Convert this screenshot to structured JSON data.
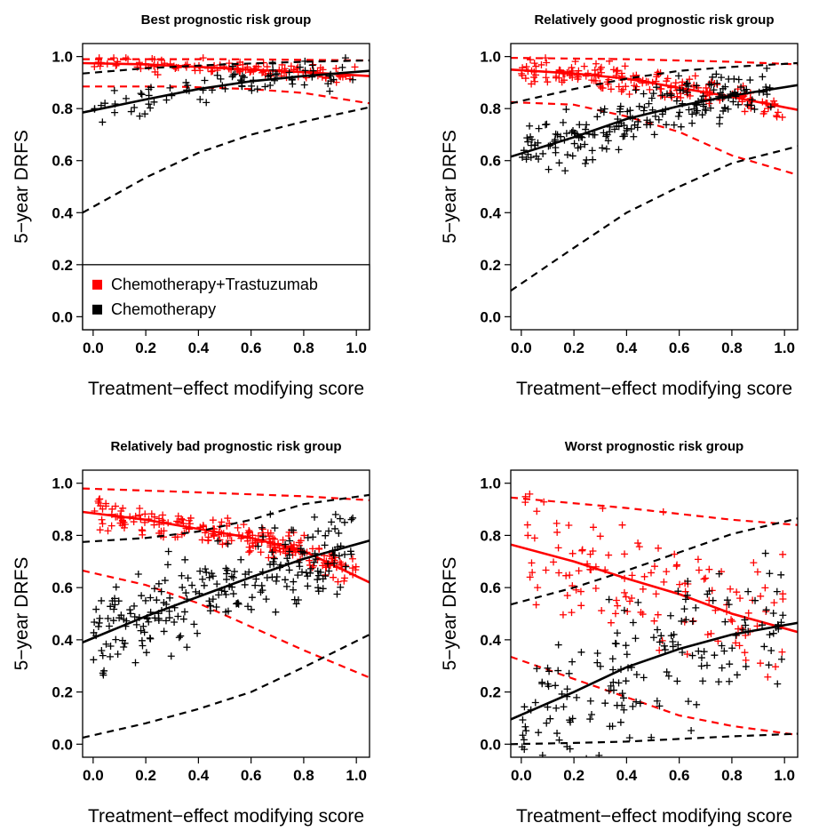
{
  "colors": {
    "trastuzumab": "#ff0000",
    "chemotherapy": "#000000"
  },
  "chart_data": [
    {
      "type": "scatter",
      "title": "Best prognostic risk group",
      "xlabel": "Treatment−effect modifying score",
      "ylabel": "5−year DRFS",
      "xlim": [
        -0.04,
        1.05
      ],
      "ylim": [
        -0.05,
        1.05
      ],
      "xticks": [
        "0.0",
        "0.2",
        "0.4",
        "0.6",
        "0.8",
        "1.0"
      ],
      "yticks": [
        "0.0",
        "0.2",
        "0.4",
        "0.6",
        "0.8",
        "1.0"
      ],
      "legend": {
        "placement": "bottom-left",
        "entries": [
          "Chemotherapy+Trastuzumab",
          "Chemotherapy"
        ]
      },
      "series": [
        {
          "name": "Chemotherapy+Trastuzumab",
          "color": "#ff0000",
          "fit": [
            [
              -0.04,
              0.975
            ],
            [
              0.2,
              0.97
            ],
            [
              0.4,
              0.96
            ],
            [
              0.6,
              0.95
            ],
            [
              0.8,
              0.94
            ],
            [
              1.05,
              0.925
            ]
          ],
          "ci_upper": [
            [
              -0.04,
              0.99
            ],
            [
              0.5,
              0.99
            ],
            [
              1.05,
              0.985
            ]
          ],
          "ci_lower": [
            [
              -0.04,
              0.885
            ],
            [
              0.3,
              0.885
            ],
            [
              0.6,
              0.875
            ],
            [
              0.8,
              0.86
            ],
            [
              1.05,
              0.82
            ]
          ],
          "points": {
            "n": 110,
            "xmin": 0.0,
            "xmax": 1.0,
            "spread": 0.014
          }
        },
        {
          "name": "Chemotherapy",
          "color": "#000000",
          "fit": [
            [
              -0.04,
              0.785
            ],
            [
              0.2,
              0.835
            ],
            [
              0.4,
              0.875
            ],
            [
              0.6,
              0.905
            ],
            [
              0.8,
              0.925
            ],
            [
              1.05,
              0.945
            ]
          ],
          "ci_upper": [
            [
              -0.04,
              0.935
            ],
            [
              0.2,
              0.955
            ],
            [
              0.5,
              0.97
            ],
            [
              0.8,
              0.98
            ],
            [
              1.05,
              0.985
            ]
          ],
          "ci_lower": [
            [
              -0.04,
              0.4
            ],
            [
              0.2,
              0.535
            ],
            [
              0.4,
              0.63
            ],
            [
              0.6,
              0.7
            ],
            [
              0.8,
              0.75
            ],
            [
              1.05,
              0.805
            ]
          ],
          "points": {
            "n": 80,
            "xmin": 0.0,
            "xmax": 1.0,
            "spread": 0.03
          }
        }
      ]
    },
    {
      "type": "scatter",
      "title": "Relatively good prognostic risk group",
      "xlabel": "Treatment−effect modifying score",
      "ylabel": "5−year DRFS",
      "xlim": [
        -0.04,
        1.05
      ],
      "ylim": [
        -0.05,
        1.05
      ],
      "xticks": [
        "0.0",
        "0.2",
        "0.4",
        "0.6",
        "0.8",
        "1.0"
      ],
      "yticks": [
        "0.0",
        "0.2",
        "0.4",
        "0.6",
        "0.8",
        "1.0"
      ],
      "series": [
        {
          "name": "Chemotherapy+Trastuzumab",
          "color": "#ff0000",
          "fit": [
            [
              -0.04,
              0.95
            ],
            [
              0.2,
              0.935
            ],
            [
              0.4,
              0.915
            ],
            [
              0.6,
              0.88
            ],
            [
              0.8,
              0.845
            ],
            [
              1.05,
              0.795
            ]
          ],
          "ci_upper": [
            [
              -0.04,
              0.995
            ],
            [
              0.4,
              0.99
            ],
            [
              0.8,
              0.98
            ],
            [
              1.05,
              0.97
            ]
          ],
          "ci_lower": [
            [
              -0.04,
              0.825
            ],
            [
              0.2,
              0.815
            ],
            [
              0.4,
              0.77
            ],
            [
              0.6,
              0.71
            ],
            [
              0.8,
              0.62
            ],
            [
              1.05,
              0.545
            ]
          ],
          "points": {
            "n": 180,
            "xmin": 0.0,
            "xmax": 1.0,
            "spread": 0.025
          }
        },
        {
          "name": "Chemotherapy",
          "color": "#000000",
          "fit": [
            [
              -0.04,
              0.615
            ],
            [
              0.2,
              0.69
            ],
            [
              0.4,
              0.76
            ],
            [
              0.6,
              0.81
            ],
            [
              0.8,
              0.85
            ],
            [
              1.05,
              0.89
            ]
          ],
          "ci_upper": [
            [
              -0.04,
              0.82
            ],
            [
              0.2,
              0.875
            ],
            [
              0.4,
              0.915
            ],
            [
              0.6,
              0.945
            ],
            [
              0.8,
              0.96
            ],
            [
              1.05,
              0.975
            ]
          ],
          "ci_lower": [
            [
              -0.04,
              0.1
            ],
            [
              0.2,
              0.265
            ],
            [
              0.4,
              0.4
            ],
            [
              0.6,
              0.5
            ],
            [
              0.8,
              0.59
            ],
            [
              1.05,
              0.655
            ]
          ],
          "points": {
            "n": 200,
            "xmin": 0.0,
            "xmax": 0.95,
            "spread": 0.05
          }
        }
      ]
    },
    {
      "type": "scatter",
      "title": "Relatively bad prognostic risk group",
      "xlabel": "Treatment−effect modifying score",
      "ylabel": "5−year DRFS",
      "xlim": [
        -0.04,
        1.05
      ],
      "ylim": [
        -0.05,
        1.05
      ],
      "xticks": [
        "0.0",
        "0.2",
        "0.4",
        "0.6",
        "0.8",
        "1.0"
      ],
      "yticks": [
        "0.0",
        "0.2",
        "0.4",
        "0.6",
        "0.8",
        "1.0"
      ],
      "series": [
        {
          "name": "Chemotherapy+Trastuzumab",
          "color": "#ff0000",
          "fit": [
            [
              -0.04,
              0.89
            ],
            [
              0.2,
              0.86
            ],
            [
              0.4,
              0.825
            ],
            [
              0.6,
              0.79
            ],
            [
              0.8,
              0.74
            ],
            [
              1.05,
              0.62
            ]
          ],
          "ci_upper": [
            [
              -0.04,
              0.98
            ],
            [
              0.4,
              0.965
            ],
            [
              0.8,
              0.95
            ],
            [
              1.05,
              0.935
            ]
          ],
          "ci_lower": [
            [
              -0.04,
              0.665
            ],
            [
              0.2,
              0.61
            ],
            [
              0.4,
              0.54
            ],
            [
              0.6,
              0.45
            ],
            [
              0.8,
              0.36
            ],
            [
              1.05,
              0.255
            ]
          ],
          "points": {
            "n": 220,
            "xmin": 0.0,
            "xmax": 1.0,
            "spread": 0.03
          }
        },
        {
          "name": "Chemotherapy",
          "color": "#000000",
          "fit": [
            [
              -0.04,
              0.39
            ],
            [
              0.2,
              0.49
            ],
            [
              0.4,
              0.565
            ],
            [
              0.6,
              0.64
            ],
            [
              0.8,
              0.71
            ],
            [
              1.05,
              0.78
            ]
          ],
          "ci_upper": [
            [
              -0.04,
              0.775
            ],
            [
              0.2,
              0.79
            ],
            [
              0.4,
              0.815
            ],
            [
              0.6,
              0.86
            ],
            [
              0.8,
              0.92
            ],
            [
              1.05,
              0.955
            ]
          ],
          "ci_lower": [
            [
              -0.04,
              0.025
            ],
            [
              0.2,
              0.08
            ],
            [
              0.4,
              0.135
            ],
            [
              0.6,
              0.2
            ],
            [
              0.8,
              0.295
            ],
            [
              1.05,
              0.42
            ]
          ],
          "points": {
            "n": 240,
            "xmin": 0.0,
            "xmax": 1.0,
            "spread": 0.08
          }
        }
      ]
    },
    {
      "type": "scatter",
      "title": "Worst prognostic risk group",
      "xlabel": "Treatment−effect modifying score",
      "ylabel": "5−year DRFS",
      "xlim": [
        -0.04,
        1.05
      ],
      "ylim": [
        -0.05,
        1.05
      ],
      "xticks": [
        "0.0",
        "0.2",
        "0.4",
        "0.6",
        "0.8",
        "1.0"
      ],
      "yticks": [
        "0.0",
        "0.2",
        "0.4",
        "0.6",
        "0.8",
        "1.0"
      ],
      "series": [
        {
          "name": "Chemotherapy+Trastuzumab",
          "color": "#ff0000",
          "fit": [
            [
              -0.04,
              0.765
            ],
            [
              0.2,
              0.7
            ],
            [
              0.4,
              0.635
            ],
            [
              0.6,
              0.575
            ],
            [
              0.8,
              0.5
            ],
            [
              1.05,
              0.43
            ]
          ],
          "ci_upper": [
            [
              -0.04,
              0.945
            ],
            [
              0.4,
              0.905
            ],
            [
              0.8,
              0.86
            ],
            [
              1.05,
              0.84
            ]
          ],
          "ci_lower": [
            [
              -0.04,
              0.335
            ],
            [
              0.2,
              0.25
            ],
            [
              0.4,
              0.18
            ],
            [
              0.6,
              0.11
            ],
            [
              0.8,
              0.07
            ],
            [
              1.05,
              0.035
            ]
          ],
          "points": {
            "n": 130,
            "xmin": 0.0,
            "xmax": 1.0,
            "spread": 0.12
          }
        },
        {
          "name": "Chemotherapy",
          "color": "#000000",
          "fit": [
            [
              -0.04,
              0.095
            ],
            [
              0.2,
              0.2
            ],
            [
              0.4,
              0.295
            ],
            [
              0.6,
              0.365
            ],
            [
              0.8,
              0.42
            ],
            [
              1.05,
              0.465
            ]
          ],
          "ci_upper": [
            [
              -0.04,
              0.535
            ],
            [
              0.2,
              0.6
            ],
            [
              0.4,
              0.665
            ],
            [
              0.6,
              0.735
            ],
            [
              0.8,
              0.805
            ],
            [
              1.05,
              0.865
            ]
          ],
          "ci_lower": [
            [
              -0.04,
              0.0
            ],
            [
              0.2,
              0.005
            ],
            [
              0.4,
              0.01
            ],
            [
              0.6,
              0.02
            ],
            [
              0.8,
              0.03
            ],
            [
              1.05,
              0.04
            ]
          ],
          "points": {
            "n": 170,
            "xmin": 0.0,
            "xmax": 1.0,
            "spread": 0.13
          }
        }
      ]
    }
  ]
}
